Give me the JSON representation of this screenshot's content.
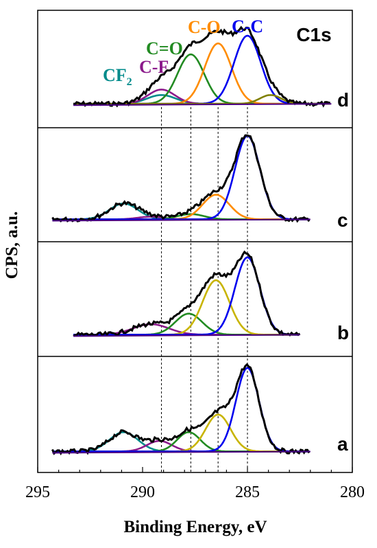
{
  "figure": {
    "title": "C1s",
    "xlabel": "Binding Energy, eV",
    "ylabel": "CPS, a.u."
  },
  "chart_data": {
    "type": "line",
    "title": "C1s",
    "xlabel": "Binding Energy, eV",
    "ylabel": "CPS, a.u.",
    "x_reversed": true,
    "xlim": [
      295,
      280
    ],
    "xticks": [
      295,
      290,
      285,
      280
    ],
    "reference_lines": [
      289.1,
      289.1,
      287.7,
      286.4,
      285.0
    ],
    "colors": {
      "CF2": "#008b8b",
      "C-F": "#8b1a8b",
      "C=O": "#228b22",
      "C-O": "#ff8c00",
      "C-C": "#0000ee",
      "C-O (b)": "#c8b400",
      "extra": "#808000",
      "envelope": "#000000"
    },
    "component_labels": [
      {
        "key": "CF2",
        "text": "CF",
        "sub": "2",
        "color": "#008b8b"
      },
      {
        "key": "C-F",
        "text": "C-F",
        "color": "#8b1a8b"
      },
      {
        "key": "C=O",
        "text": "C=O",
        "color": "#228b22"
      },
      {
        "key": "C-O",
        "text": "C-O",
        "color": "#ff8c00"
      },
      {
        "key": "C-C",
        "text": "C-C",
        "color": "#0000ee"
      }
    ],
    "panels": [
      {
        "label": "d",
        "x_range": [
          293.3,
          281.0
        ],
        "baseline": 0.03,
        "components": [
          {
            "name": "CF2",
            "center": 289.1,
            "height": 0.08,
            "fwhm": 1.6,
            "color": "#008b8b"
          },
          {
            "name": "C-F",
            "center": 289.1,
            "height": 0.13,
            "fwhm": 1.5,
            "color": "#8b1a8b"
          },
          {
            "name": "C=O",
            "center": 287.7,
            "height": 0.45,
            "fwhm": 1.5,
            "color": "#228b22"
          },
          {
            "name": "C-O",
            "center": 286.4,
            "height": 0.55,
            "fwhm": 1.5,
            "color": "#ff8c00"
          },
          {
            "name": "C-C",
            "center": 285.0,
            "height": 0.62,
            "fwhm": 1.5,
            "color": "#0000ee"
          },
          {
            "name": "extra",
            "center": 283.9,
            "height": 0.08,
            "fwhm": 1.2,
            "color": "#808000"
          }
        ]
      },
      {
        "label": "c",
        "x_range": [
          294.3,
          282.0
        ],
        "baseline": 0.02,
        "components": [
          {
            "name": "CF2",
            "center": 290.9,
            "height": 0.18,
            "fwhm": 1.6,
            "color": "#008b8b"
          },
          {
            "name": "C-F",
            "center": 289.6,
            "height": 0.03,
            "fwhm": 1.5,
            "color": "#8b1a8b"
          },
          {
            "name": "C=O",
            "center": 287.7,
            "height": 0.06,
            "fwhm": 1.5,
            "color": "#228b22"
          },
          {
            "name": "C-O",
            "center": 286.5,
            "height": 0.28,
            "fwhm": 1.5,
            "color": "#ff8c00"
          },
          {
            "name": "C-C",
            "center": 285.0,
            "height": 0.95,
            "fwhm": 1.4,
            "color": "#0000ee"
          }
        ]
      },
      {
        "label": "b",
        "x_range": [
          293.3,
          282.5
        ],
        "baseline": 0.02,
        "components": [
          {
            "name": "C-F",
            "center": 289.6,
            "height": 0.12,
            "fwhm": 2.0,
            "color": "#8b1a8b"
          },
          {
            "name": "C=O",
            "center": 287.8,
            "height": 0.24,
            "fwhm": 1.5,
            "color": "#228b22"
          },
          {
            "name": "C-O",
            "center": 286.5,
            "height": 0.62,
            "fwhm": 1.5,
            "color": "#c8b400"
          },
          {
            "name": "C-C",
            "center": 285.0,
            "height": 0.88,
            "fwhm": 1.4,
            "color": "#0000ee"
          }
        ]
      },
      {
        "label": "a",
        "x_range": [
          294.3,
          282.0
        ],
        "baseline": 0.02,
        "components": [
          {
            "name": "CF2",
            "center": 290.9,
            "height": 0.22,
            "fwhm": 1.6,
            "color": "#008b8b"
          },
          {
            "name": "C-F",
            "center": 289.2,
            "height": 0.12,
            "fwhm": 1.4,
            "color": "#8b1a8b"
          },
          {
            "name": "C=O",
            "center": 287.8,
            "height": 0.22,
            "fwhm": 1.3,
            "color": "#228b22"
          },
          {
            "name": "C-O",
            "center": 286.4,
            "height": 0.42,
            "fwhm": 1.4,
            "color": "#c8b400"
          },
          {
            "name": "C-C",
            "center": 285.0,
            "height": 0.95,
            "fwhm": 1.3,
            "color": "#0000ee"
          }
        ]
      }
    ]
  }
}
